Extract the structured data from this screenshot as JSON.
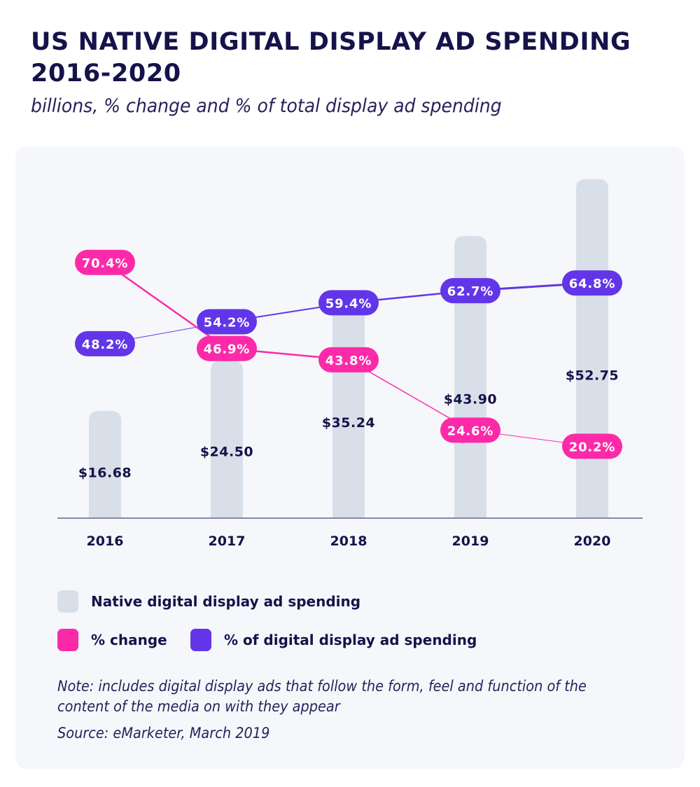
{
  "header": {
    "title_line1": "US NATIVE DIGITAL DISPLAY AD SPENDING",
    "title_line2": "2016-2020",
    "subtitle": "billions, % change and % of total display ad spending"
  },
  "colors": {
    "bar": "#d9dfe8",
    "pct_change": "#fc2aa8",
    "pct_of_display": "#6236e8",
    "text": "#16124a",
    "axis": "#8a86a8"
  },
  "chart_data": {
    "type": "bar",
    "title": "US NATIVE DIGITAL DISPLAY AD SPENDING 2016-2020",
    "subtitle": "billions, % change and % of total display ad spending",
    "categories": [
      "2016",
      "2017",
      "2018",
      "2019",
      "2020"
    ],
    "xlabel": "",
    "ylabel": "",
    "grid": false,
    "series": [
      {
        "name": "Native digital display ad spending",
        "type": "bar",
        "unit": "billions USD",
        "values": [
          16.68,
          24.5,
          35.24,
          43.9,
          52.75
        ],
        "labels": [
          "$16.68",
          "$24.50",
          "$35.24",
          "$43.90",
          "$52.75"
        ]
      },
      {
        "name": "% change",
        "type": "line",
        "unit": "%",
        "values": [
          70.4,
          46.9,
          43.8,
          24.6,
          20.2
        ],
        "labels": [
          "70.4%",
          "46.9%",
          "43.8%",
          "24.6%",
          "20.2%"
        ]
      },
      {
        "name": "% of digital display ad spending",
        "type": "line",
        "unit": "%",
        "values": [
          48.2,
          54.2,
          59.4,
          62.7,
          64.8
        ],
        "labels": [
          "48.2%",
          "54.2%",
          "59.4%",
          "62.7%",
          "64.8%"
        ]
      }
    ],
    "bar_ylim": [
      0,
      55
    ],
    "legend_position": "bottom-left"
  },
  "legend": {
    "items": [
      {
        "label": "Native digital display ad spending",
        "color_key": "bar"
      },
      {
        "label": "% change",
        "color_key": "pct_change"
      },
      {
        "label": "% of digital display ad spending",
        "color_key": "pct_of_display"
      }
    ]
  },
  "footer": {
    "note": "Note: includes digital display ads that follow the form, feel and function of the content of the media on with they appear",
    "source": "Source: eMarketer, March 2019"
  }
}
